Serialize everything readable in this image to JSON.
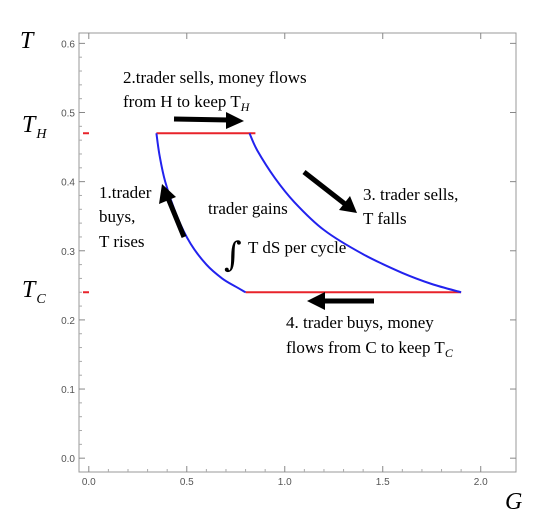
{
  "chart_data": {
    "type": "line",
    "xlabel": "G",
    "ylabel": "T",
    "xlim": [
      -0.05,
      2.18
    ],
    "ylim": [
      -0.02,
      0.615
    ],
    "x_ticks": [
      "0.0",
      "0.5",
      "1.0",
      "1.5",
      "2.0"
    ],
    "x_tick_values": [
      0.0,
      0.5,
      1.0,
      1.5,
      2.0
    ],
    "y_ticks": [
      "0.0",
      "0.1",
      "0.2",
      "0.3",
      "0.4",
      "0.5",
      "0.6"
    ],
    "y_tick_values": [
      0.0,
      0.1,
      0.2,
      0.3,
      0.4,
      0.5,
      0.6
    ],
    "grid": false,
    "temperature_levels": {
      "TH": {
        "label": "T",
        "subscript": "H",
        "value": 0.47
      },
      "TC": {
        "label": "T",
        "subscript": "C",
        "value": 0.24
      }
    },
    "series": [
      {
        "role": "hot-isotherm",
        "color": "#e8232a",
        "points": [
          [
            0.345,
            0.47
          ],
          [
            0.85,
            0.47
          ]
        ]
      },
      {
        "role": "cold-isotherm",
        "color": "#e8232a",
        "points": [
          [
            0.8,
            0.24
          ],
          [
            1.9,
            0.24
          ]
        ]
      },
      {
        "role": "left-adiabat",
        "color": "#2222ee",
        "points": [
          [
            0.345,
            0.47
          ],
          [
            0.36,
            0.44
          ],
          [
            0.39,
            0.4
          ],
          [
            0.45,
            0.35
          ],
          [
            0.52,
            0.31
          ],
          [
            0.6,
            0.28
          ],
          [
            0.68,
            0.26
          ],
          [
            0.75,
            0.248
          ],
          [
            0.8,
            0.24
          ]
        ]
      },
      {
        "role": "right-adiabat",
        "color": "#2222ee",
        "points": [
          [
            0.82,
            0.47
          ],
          [
            0.86,
            0.445
          ],
          [
            0.95,
            0.405
          ],
          [
            1.05,
            0.37
          ],
          [
            1.2,
            0.33
          ],
          [
            1.4,
            0.295
          ],
          [
            1.6,
            0.268
          ],
          [
            1.75,
            0.252
          ],
          [
            1.9,
            0.24
          ]
        ]
      }
    ],
    "annotations": {
      "step1": [
        "1.trader",
        "buys,",
        "T rises"
      ],
      "step2": [
        "2.trader sells, money flows",
        "from H to keep T"
      ],
      "step2_sub": "H",
      "step3": [
        "3. trader sells,",
        "T falls"
      ],
      "step4": [
        "4. trader buys, money",
        "flows from C to keep T"
      ],
      "step4_sub": "C",
      "gain": [
        "trader gains",
        "T dS per cycle"
      ]
    },
    "colors": {
      "isotherm": "#e8232a",
      "adiabat": "#2222ee",
      "arrow": "#000000",
      "frame": "#999999"
    }
  }
}
